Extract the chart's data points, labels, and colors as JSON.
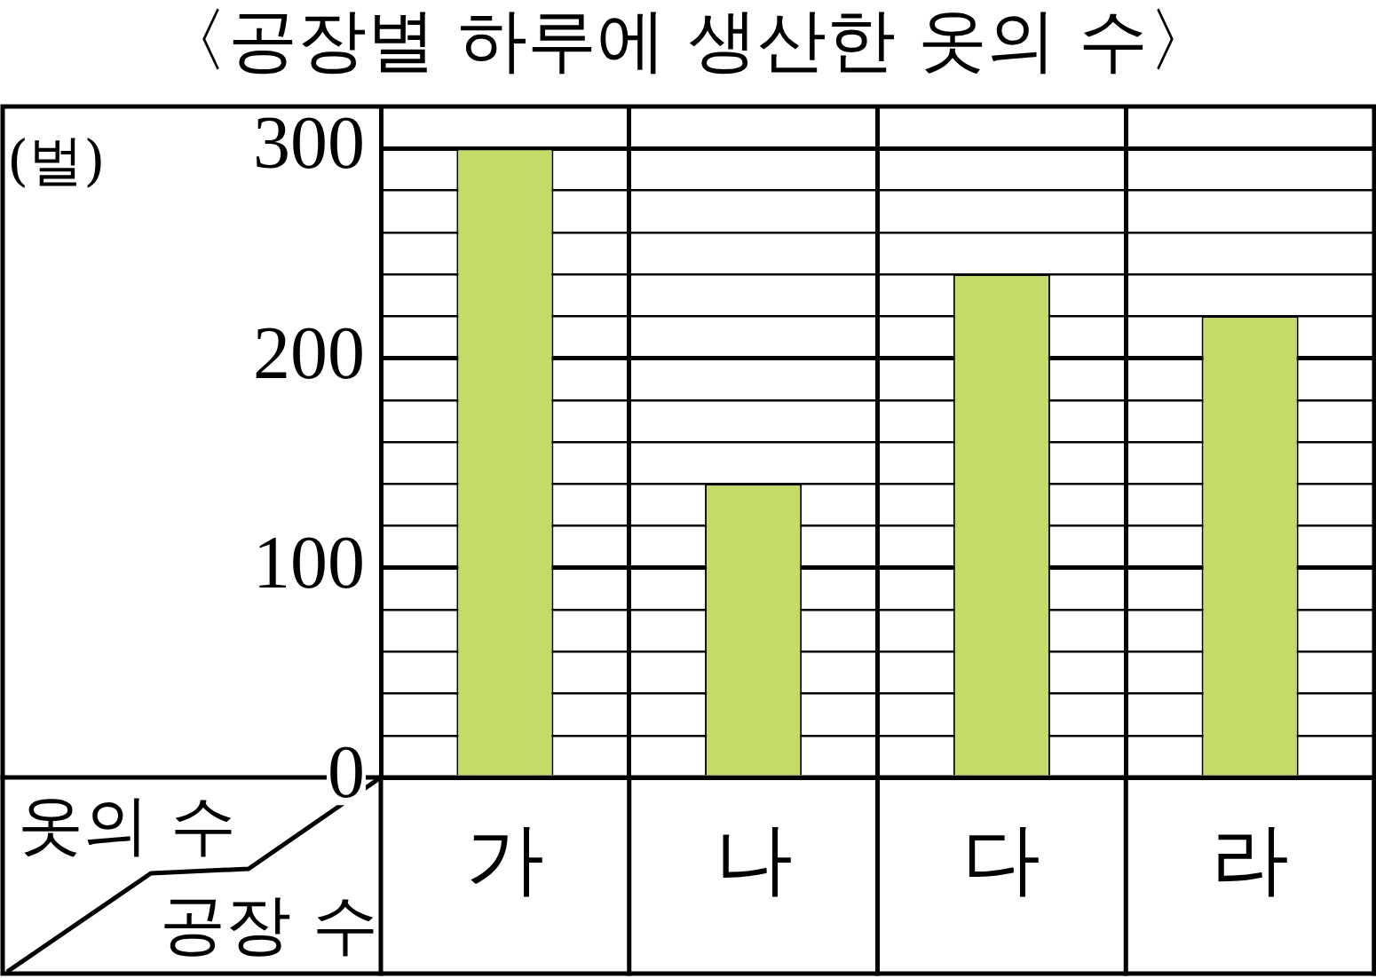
{
  "chart_data": {
    "type": "bar",
    "title": "〈공장별 하루에 생산한 옷의 수〉",
    "ylabel": "(벌)",
    "xlabel": "공장 수",
    "annotations": [
      "옷의 수"
    ],
    "categories": [
      "가",
      "나",
      "다",
      "라"
    ],
    "values": [
      300,
      140,
      240,
      220
    ],
    "color": "#c4db68",
    "ylim": [
      0,
      320
    ],
    "yticks": [
      0,
      {
        "value": 20,
        "label": null
      },
      {
        "value": 40,
        "label": null
      },
      {
        "value": 60,
        "label": null
      },
      {
        "value": 80,
        "label": null
      },
      100,
      {
        "value": 120,
        "label": null
      },
      {
        "value": 140,
        "label": null
      },
      {
        "value": 160,
        "label": null
      },
      {
        "value": 180,
        "label": null
      },
      200,
      {
        "value": 220,
        "label": null
      },
      {
        "value": 240,
        "label": null
      },
      {
        "value": 260,
        "label": null
      },
      {
        "value": 280,
        "label": null
      },
      300
    ],
    "grid": true
  }
}
